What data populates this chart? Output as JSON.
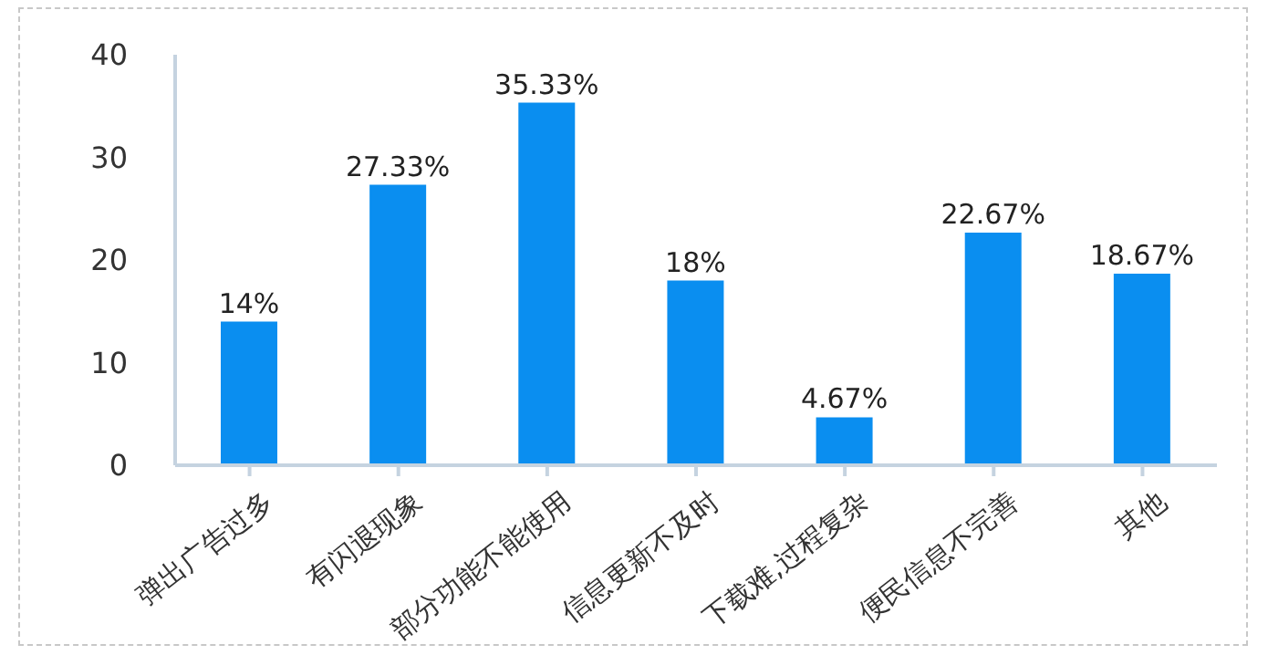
{
  "chart_data": {
    "type": "bar",
    "categories": [
      "弹出广告过多",
      "有闪退现象",
      "部分功能不能使用",
      "信息更新不及时",
      "下载难,过程复杂",
      "便民信息不完善",
      "其他"
    ],
    "values": [
      14,
      27.33,
      35.33,
      18,
      4.67,
      22.67,
      18.67
    ],
    "value_labels": [
      "14%",
      "27.33%",
      "35.33%",
      "18%",
      "4.67%",
      "22.67%",
      "18.67%"
    ],
    "color": "#0a8ef0",
    "ylim": [
      0,
      40
    ],
    "yticks": [
      0,
      10,
      20,
      30,
      40
    ],
    "grid": false,
    "legend": false
  }
}
